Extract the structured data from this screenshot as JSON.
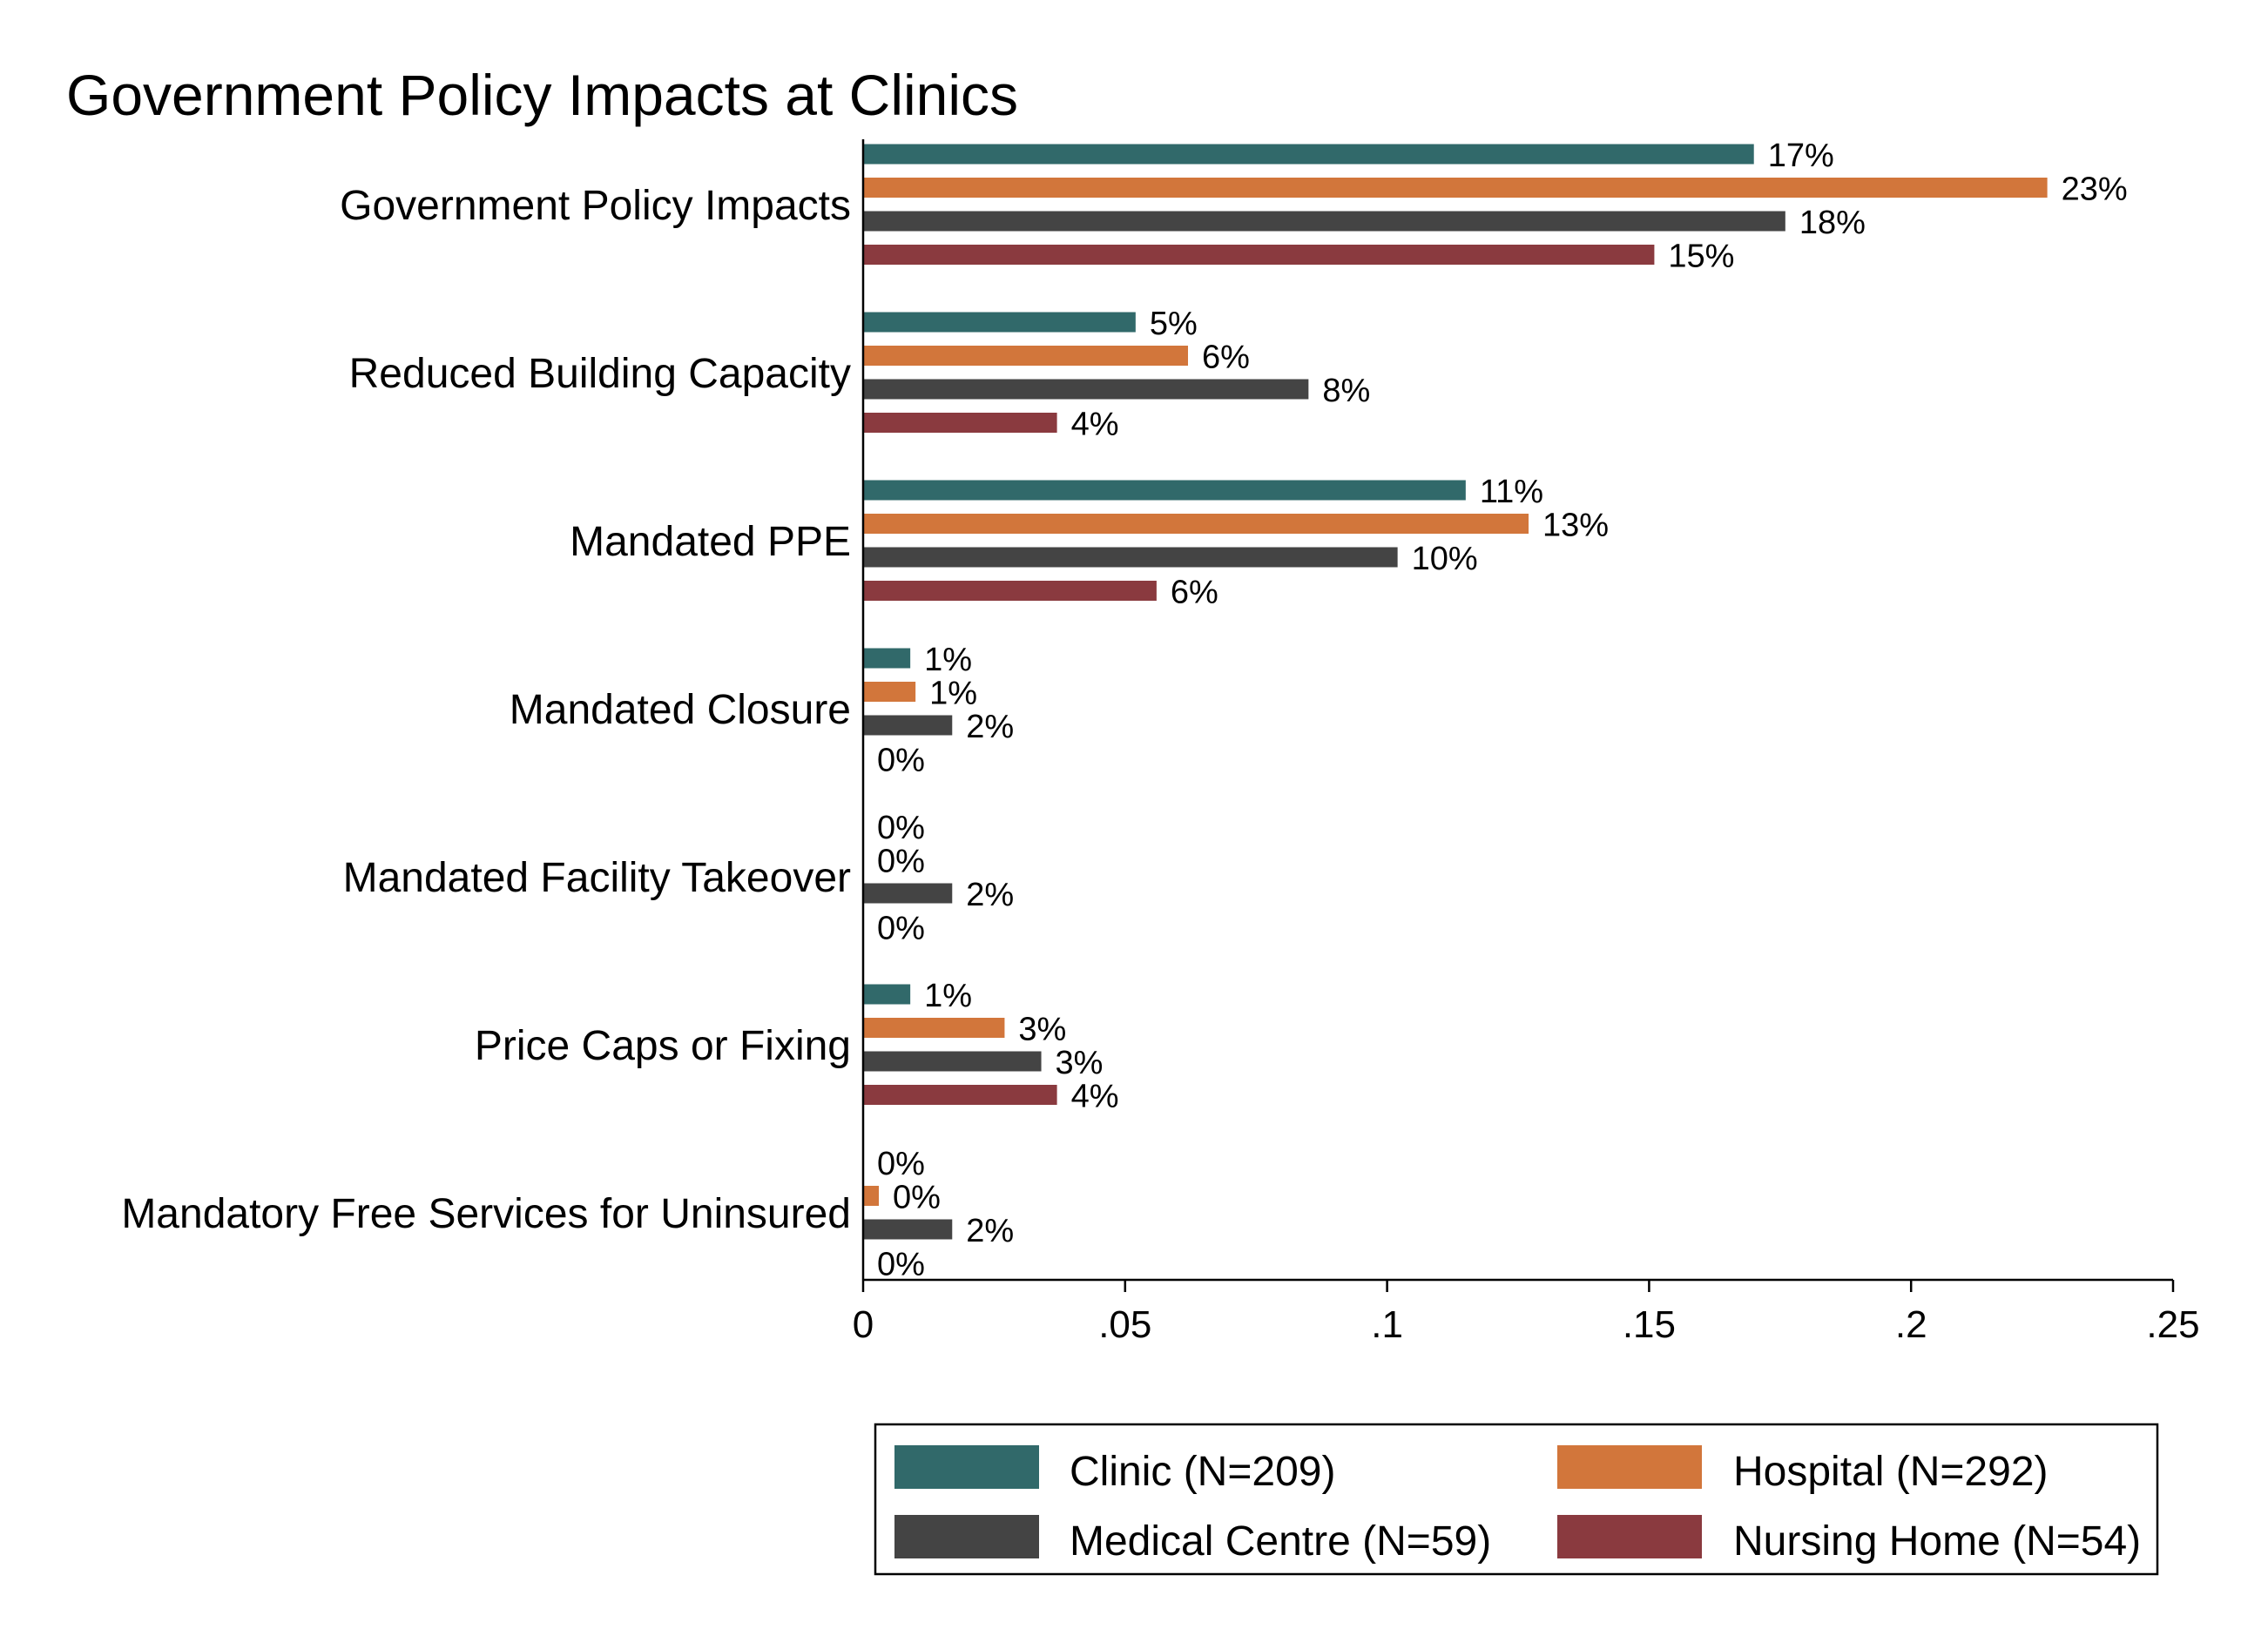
{
  "chart_data": {
    "type": "bar",
    "orientation": "horizontal",
    "title": "Government Policy Impacts at Clinics",
    "xlabel": "",
    "ylabel": "",
    "xlim": [
      0,
      0.25
    ],
    "x_ticks": [
      {
        "value": 0,
        "label": "0"
      },
      {
        "value": 0.05,
        "label": ".05"
      },
      {
        "value": 0.1,
        "label": ".1"
      },
      {
        "value": 0.15,
        "label": ".15"
      },
      {
        "value": 0.2,
        "label": ".2"
      },
      {
        "value": 0.25,
        "label": ".25"
      }
    ],
    "grid": false,
    "legend_position": "bottom",
    "categories": [
      "Government Policy Impacts",
      "Reduced Building Capacity",
      "Mandated PPE",
      "Mandated Closure",
      "Mandated Facility Takeover",
      "Price Caps or Fixing",
      "Mandatory Free Services for Uninsured"
    ],
    "series": [
      {
        "name": "Clinic (N=209)",
        "color": "#31696a",
        "values": [
          0.17,
          0.052,
          0.115,
          0.009,
          0,
          0.009,
          0
        ],
        "labels": [
          "17%",
          "5%",
          "11%",
          "1%",
          "0%",
          "1%",
          "0%"
        ]
      },
      {
        "name": "Hospital (N=292)",
        "color": "#d2763b",
        "values": [
          0.226,
          0.062,
          0.127,
          0.01,
          0,
          0.027,
          0.003
        ],
        "labels": [
          "23%",
          "6%",
          "13%",
          "1%",
          "0%",
          "3%",
          "0%"
        ]
      },
      {
        "name": "Medical Centre (N=59)",
        "color": "#444444",
        "values": [
          0.176,
          0.085,
          0.102,
          0.017,
          0.017,
          0.034,
          0.017
        ],
        "labels": [
          "18%",
          "8%",
          "10%",
          "2%",
          "2%",
          "3%",
          "2%"
        ]
      },
      {
        "name": "Nursing Home (N=54)",
        "color": "#8a3a3f",
        "values": [
          0.151,
          0.037,
          0.056,
          0,
          0,
          0.037,
          0
        ],
        "labels": [
          "15%",
          "4%",
          "6%",
          "0%",
          "0%",
          "4%",
          "0%"
        ]
      }
    ]
  }
}
